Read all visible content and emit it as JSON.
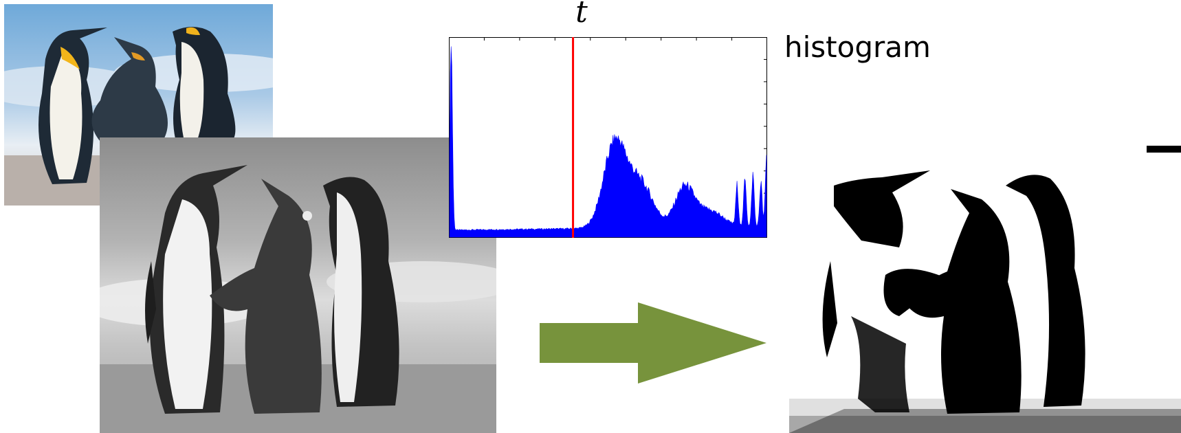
{
  "labels": {
    "threshold": "t",
    "histogram": "histogram"
  },
  "colors": {
    "histogram_fill": "#0000ff",
    "threshold_line": "#ff0000",
    "arrow": "#77933c"
  },
  "icons": {
    "color_photo": "penguins-color-photo",
    "gray_photo": "penguins-grayscale-photo",
    "binary_photo": "penguins-binary-photo",
    "arrow": "right-arrow-icon"
  },
  "histogram": {
    "threshold_fraction": 0.39
  }
}
